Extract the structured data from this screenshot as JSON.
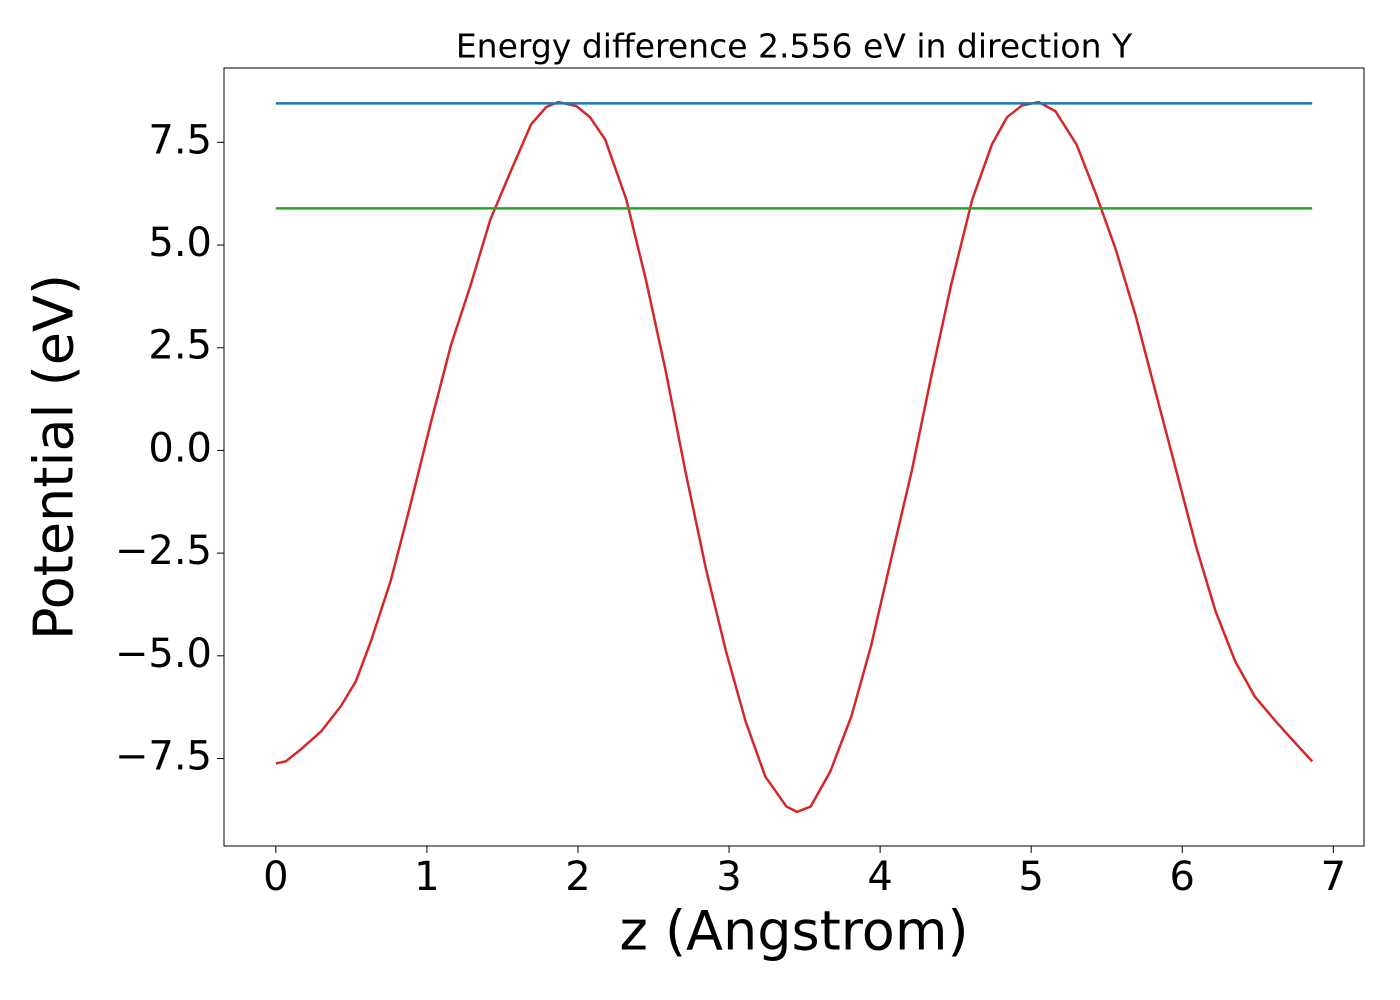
{
  "chart_data": {
    "type": "line",
    "title": "Energy difference 2.556 eV in direction Y",
    "x_label": "z (Angstrom)",
    "y_label": "Potential (eV)",
    "xlim": [
      -0.343,
      7.203
    ],
    "ylim": [
      -9.63,
      9.31
    ],
    "xticks": [
      0,
      1,
      2,
      3,
      4,
      5,
      6,
      7
    ],
    "yticks": [
      {
        "value": -7.5,
        "label": "−7.5"
      },
      {
        "value": -5,
        "label": "−5.0"
      },
      {
        "value": -2.5,
        "label": "−2.5"
      },
      {
        "value": 0,
        "label": "0.0"
      },
      2.5,
      {
        "value": 5,
        "label": "5.0"
      },
      7.5
    ],
    "series": [
      {
        "color": "#d62728",
        "x": [
          0,
          0.066,
          0.165,
          0.3,
          0.43,
          0.53,
          0.63,
          0.76,
          0.89,
          1.03,
          1.16,
          1.29,
          1.42,
          1.56,
          1.69,
          1.79,
          1.87,
          1.99,
          2.08,
          2.18,
          2.32,
          2.45,
          2.58,
          2.71,
          2.85,
          2.98,
          3.11,
          3.24,
          3.38,
          3.45,
          3.54,
          3.67,
          3.81,
          3.94,
          4.07,
          4.21,
          4.34,
          4.47,
          4.61,
          4.74,
          4.84,
          4.94,
          5.05,
          5.16,
          5.3,
          5.43,
          5.56,
          5.69,
          5.82,
          5.96,
          6.09,
          6.22,
          6.35,
          6.48,
          6.62,
          6.75,
          6.86
        ],
        "values": [
          -7.62,
          -7.57,
          -7.28,
          -6.84,
          -6.23,
          -5.62,
          -4.64,
          -3.18,
          -1.34,
          0.73,
          2.57,
          4.03,
          5.62,
          6.84,
          7.94,
          8.36,
          8.48,
          8.38,
          8.11,
          7.57,
          6.11,
          4.15,
          1.95,
          -0.49,
          -2.93,
          -4.89,
          -6.6,
          -7.94,
          -8.67,
          -8.8,
          -8.67,
          -7.82,
          -6.47,
          -4.76,
          -2.69,
          -0.49,
          1.83,
          4.03,
          6.11,
          7.45,
          8.11,
          8.4,
          8.48,
          8.26,
          7.45,
          6.23,
          4.89,
          3.3,
          1.47,
          -0.49,
          -2.32,
          -3.91,
          -5.13,
          -5.99,
          -6.6,
          -7.13,
          -7.57
        ]
      },
      {
        "color": "#1f77b4",
        "x": [
          0,
          6.86
        ],
        "values": [
          8.45,
          8.45
        ]
      },
      {
        "color": "#2ca02c",
        "x": [
          0,
          6.86
        ],
        "values": [
          5.894,
          5.894
        ]
      }
    ]
  }
}
